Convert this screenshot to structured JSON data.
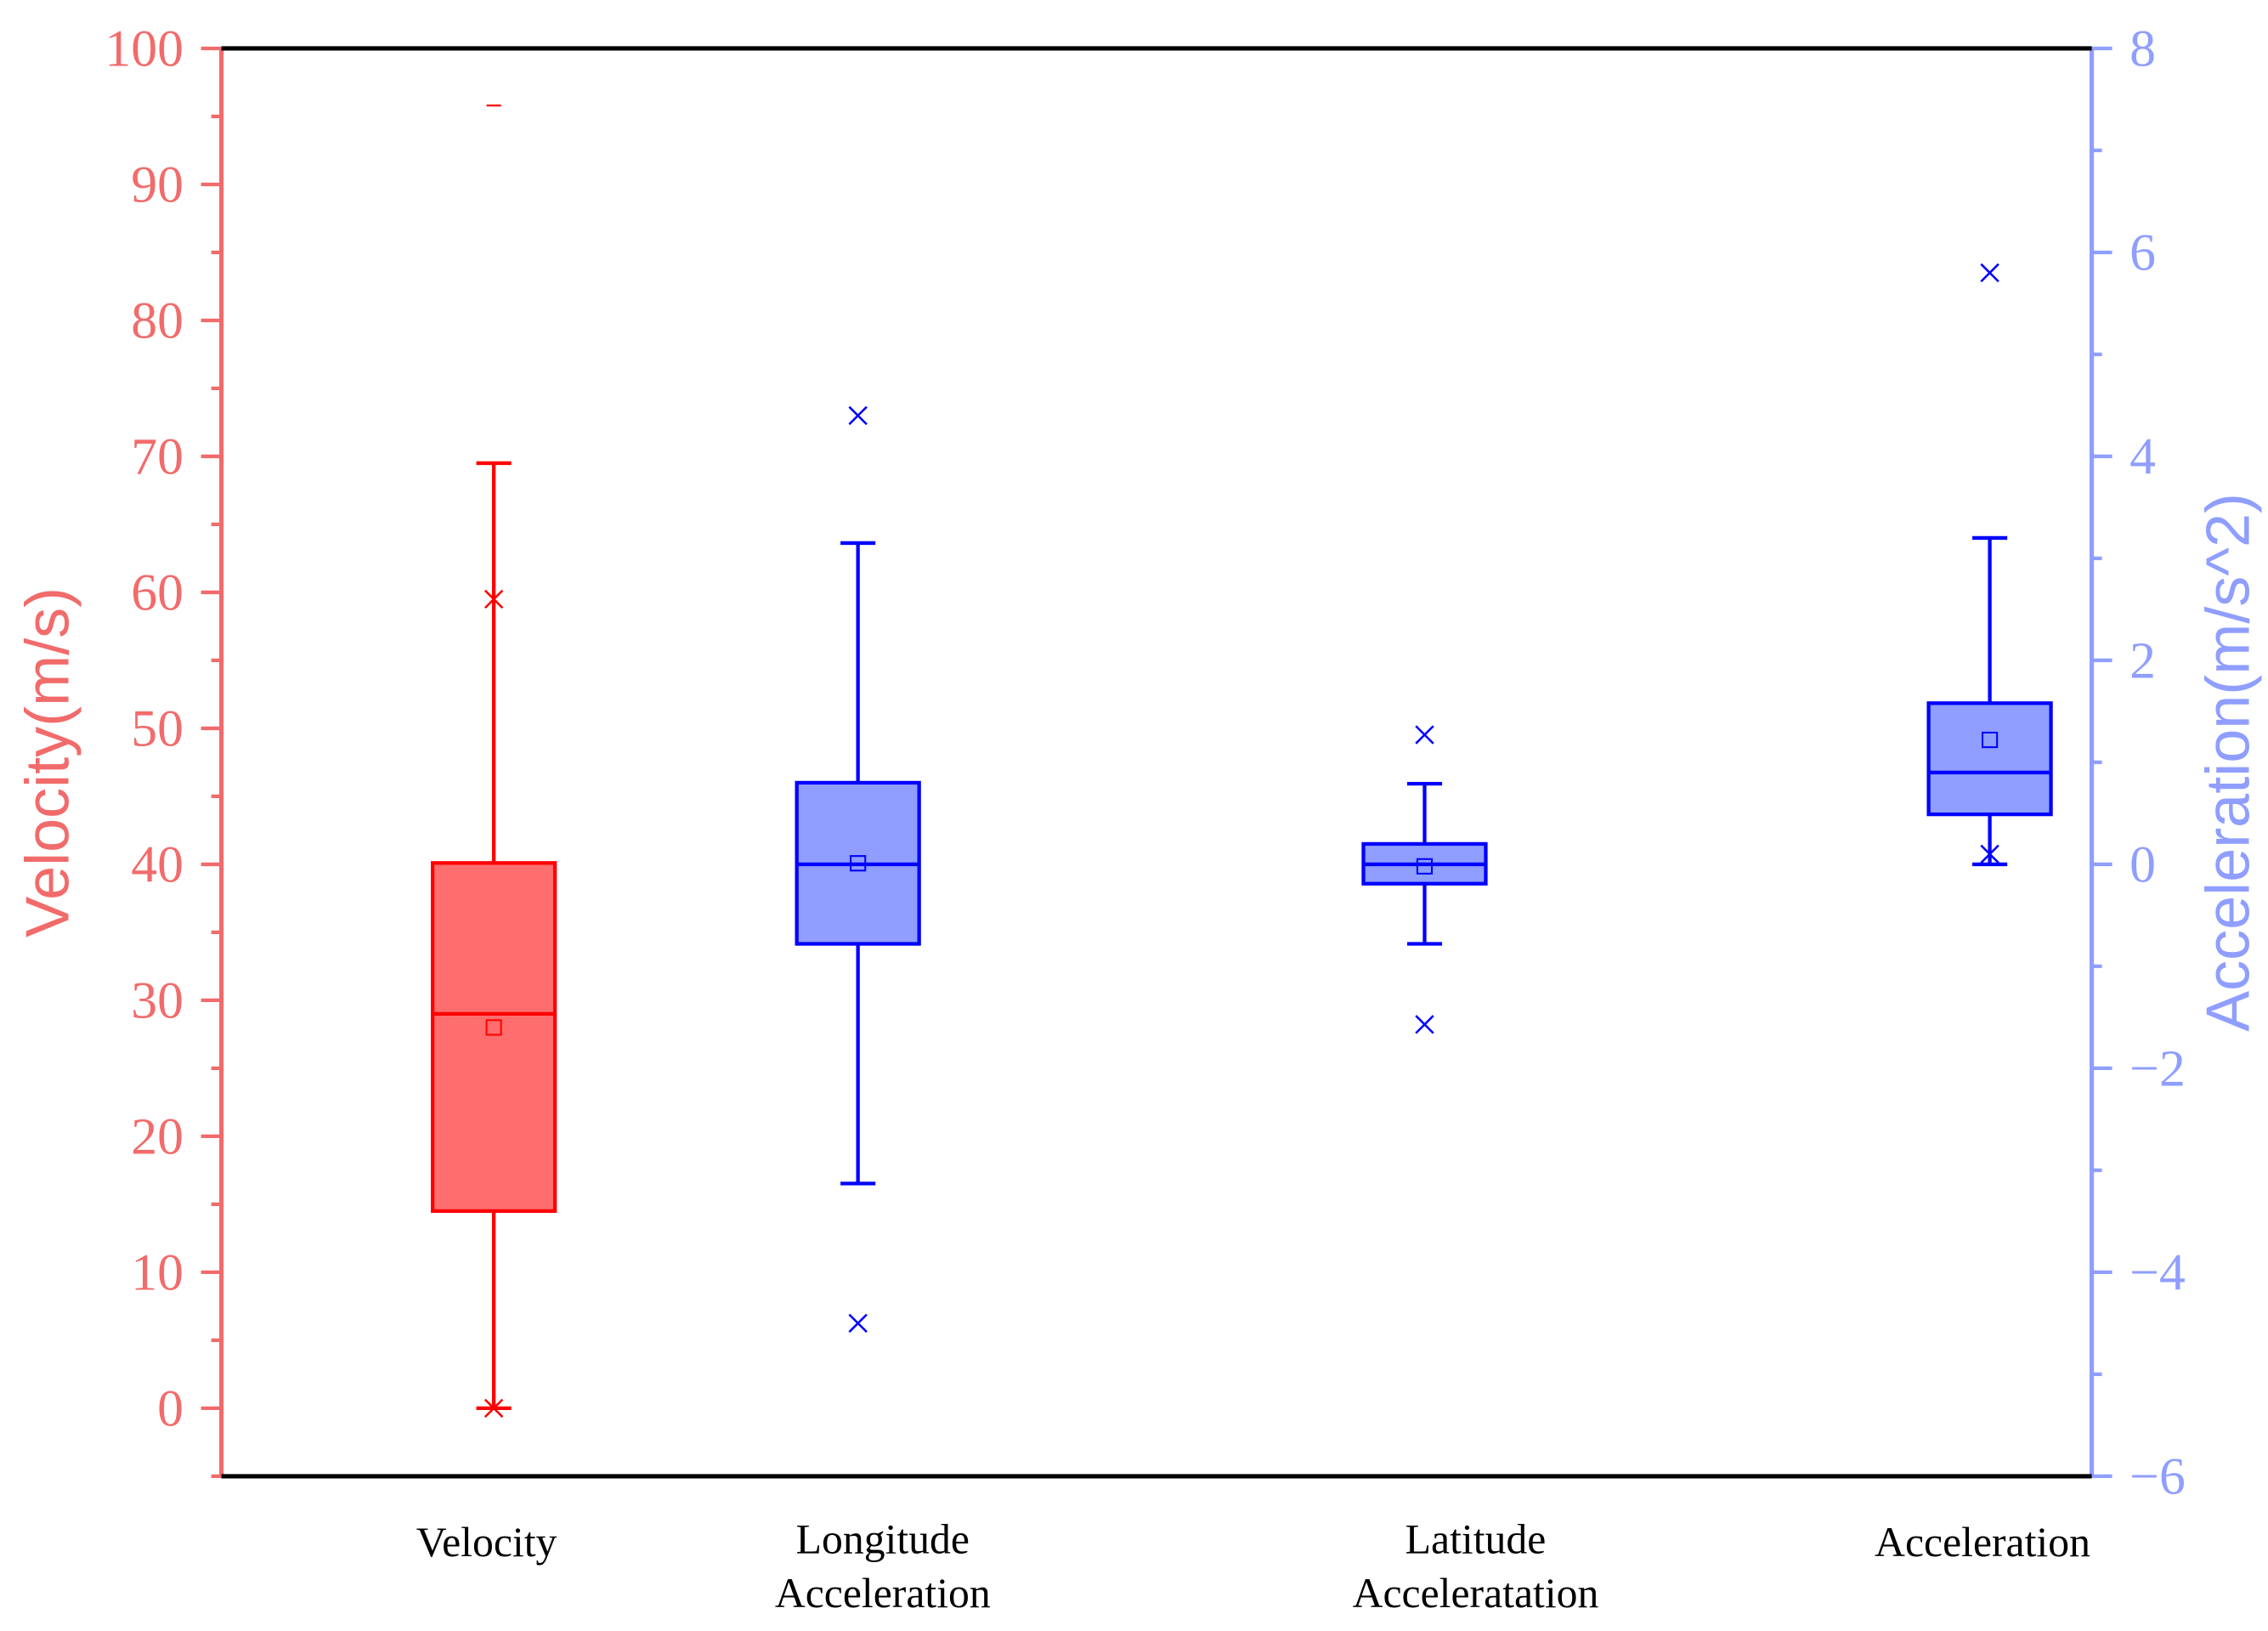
{
  "chart_data": {
    "type": "box",
    "title": "",
    "colors": {
      "left_axis": "#f26b6b",
      "right_axis": "#8f9eff",
      "red_stroke": "#ff0000",
      "red_fill": "#ff6e6e",
      "blue_stroke": "#0000ff",
      "blue_fill": "#8f9eff",
      "frame": "#000000"
    },
    "left_axis": {
      "label": "Velocity(m/s)",
      "range": [
        -5,
        100
      ],
      "major_ticks": [
        0,
        10,
        20,
        30,
        40,
        50,
        60,
        70,
        80,
        90,
        100
      ],
      "tick_labels": [
        "0",
        "10",
        "20",
        "30",
        "40",
        "50",
        "60",
        "70",
        "80",
        "90",
        "100"
      ],
      "minor_step": 5
    },
    "right_axis": {
      "label": "Acceleration(m/s^2)",
      "range": [
        -6,
        8
      ],
      "major_ticks": [
        -6,
        -4,
        -2,
        0,
        2,
        4,
        6,
        8
      ],
      "tick_labels": [
        "−6",
        "−4",
        "−2",
        "0",
        "2",
        "4",
        "6",
        "8"
      ],
      "minor_step": 1
    },
    "categories": [
      {
        "lines": [
          "Velocity"
        ],
        "axis": "left",
        "color": "red",
        "min": 0,
        "q1": 14.5,
        "median": 29,
        "q3": 40.1,
        "max": 69.5,
        "mean": 28,
        "pct_low": 0,
        "pct_high": 59.5,
        "outlier_max": 95.8
      },
      {
        "lines": [
          "Longitude",
          "Acceleration"
        ],
        "axis": "right",
        "color": "blue",
        "min": -3.13,
        "q1": -0.78,
        "median": 0,
        "q3": 0.8,
        "max": 3.15,
        "mean": 0.01,
        "pct_low": -4.5,
        "pct_high": 4.4
      },
      {
        "lines": [
          "Latitude",
          "Acceleratation"
        ],
        "axis": "right",
        "color": "blue",
        "min": -0.78,
        "q1": -0.19,
        "median": 0,
        "q3": 0.2,
        "max": 0.79,
        "mean": -0.02,
        "pct_low": -1.57,
        "pct_high": 1.27
      },
      {
        "lines": [
          "Acceleration"
        ],
        "axis": "right",
        "color": "blue",
        "min": 0,
        "q1": 0.49,
        "median": 0.9,
        "q3": 1.58,
        "max": 3.2,
        "mean": 1.22,
        "pct_low": 0.1,
        "pct_high": 5.8
      }
    ]
  }
}
